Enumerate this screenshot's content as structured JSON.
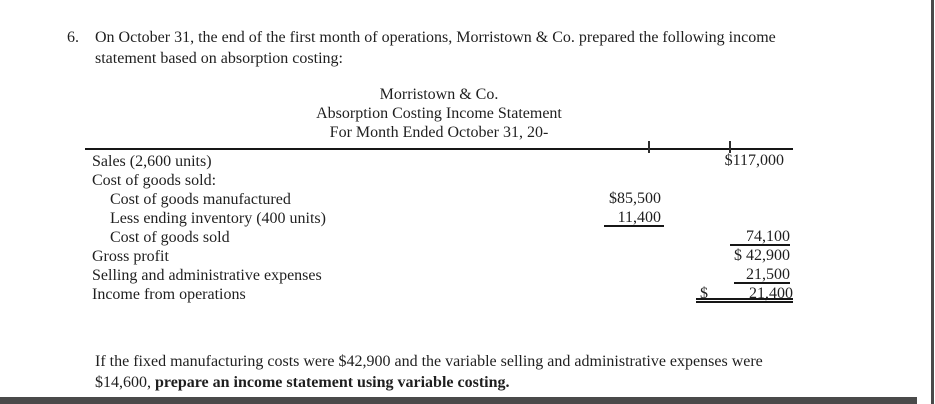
{
  "problem": {
    "number": "6.",
    "line1": "On October 31, the end of the first month of operations, Morristown & Co. prepared the following income",
    "line2": "statement based on absorption costing:"
  },
  "statement": {
    "company": "Morristown & Co.",
    "title": "Absorption Costing Income Statement",
    "period": "For Month Ended October 31, 20-",
    "rows": [
      {
        "label": "Sales (2,600 units)",
        "right": "$117,000"
      },
      {
        "label": "Cost of goods sold:"
      },
      {
        "label": "Cost of goods manufactured",
        "mid": "$85,500"
      },
      {
        "label": "Less ending inventory (400 units)",
        "mid": "11,400"
      },
      {
        "label": "Cost of goods sold",
        "right": "74,100"
      },
      {
        "label": "Gross profit",
        "right": "$ 42,900"
      },
      {
        "label": "Selling and administrative expenses",
        "right": "21,500"
      },
      {
        "label": "Income from operations",
        "right_dollar": "$",
        "right": "21,400"
      }
    ]
  },
  "followup": {
    "line1": "If the fixed manufacturing costs were $42,900 and the variable selling and administrative expenses were",
    "line2_normal": "$14,600, ",
    "line2_bold": "prepare an income statement using variable costing."
  },
  "colors": {
    "text": "#1f1f1f",
    "frame": "#4a4a4a",
    "rule": "#161616",
    "background": "#ffffff"
  }
}
